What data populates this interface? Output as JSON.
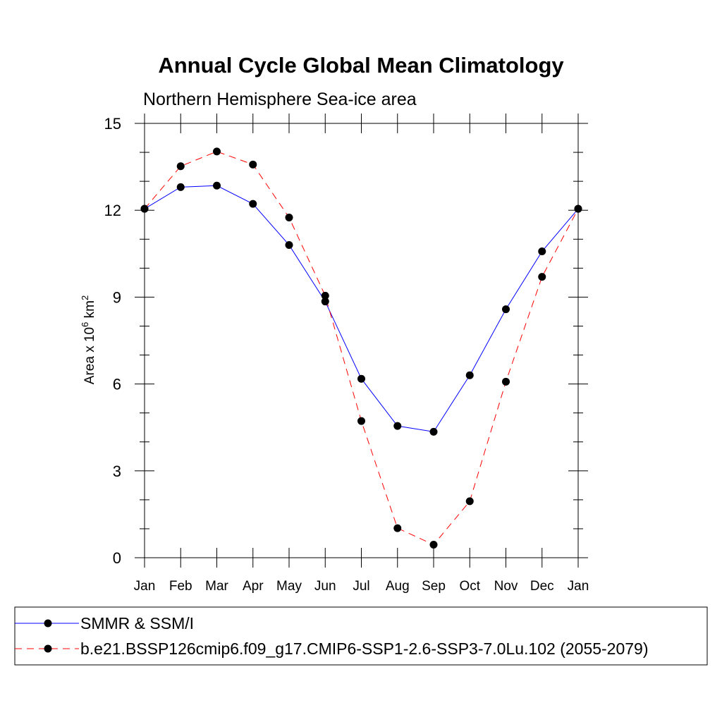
{
  "chart_data": {
    "type": "line",
    "title": "Annual Cycle Global Mean Climatology",
    "subtitle": "Northern Hemisphere Sea-ice area",
    "ylabel": {
      "prefix": "Area x 10",
      "exp1": "6",
      "mid": " km",
      "exp2": "2"
    },
    "xlabel": "",
    "categories": [
      "Jan",
      "Feb",
      "Mar",
      "Apr",
      "May",
      "Jun",
      "Jul",
      "Aug",
      "Sep",
      "Oct",
      "Nov",
      "Dec",
      "Jan"
    ],
    "ylim": [
      0,
      15
    ],
    "yticks": [
      0,
      3,
      6,
      9,
      12,
      15
    ],
    "yminor_step": 1,
    "grid": false,
    "legend_position": "bottom",
    "series": [
      {
        "name": "SMMR & SSM/I",
        "color": "#0000ff",
        "dashed": false,
        "marker": "filled-circle",
        "values": [
          12.05,
          12.8,
          12.85,
          12.22,
          10.8,
          8.85,
          6.18,
          4.55,
          4.35,
          6.3,
          8.58,
          10.58,
          12.05
        ]
      },
      {
        "name": "b.e21.BSSP126cmip6.f09_g17.CMIP6-SSP1-2.6-SSP3-7.0Lu.102 (2055-2079)",
        "color": "#ff0000",
        "dashed": true,
        "marker": "filled-circle",
        "values": [
          12.05,
          13.52,
          14.03,
          13.58,
          11.75,
          9.05,
          4.72,
          1.02,
          0.45,
          1.95,
          6.08,
          9.7,
          12.05
        ]
      }
    ]
  }
}
